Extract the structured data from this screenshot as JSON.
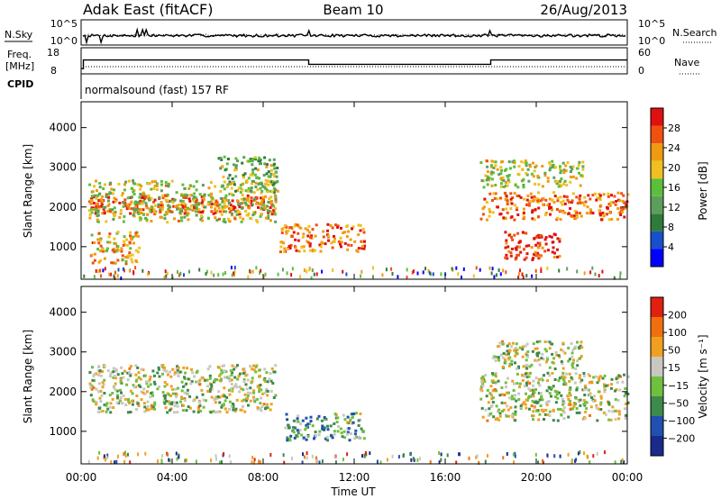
{
  "header": {
    "radar": "Adak East (fitACF)",
    "beam": "Beam 10",
    "date": "26/Aug/2013"
  },
  "noise_panel": {
    "left_label": "N.Sky",
    "right_label": "N.Search",
    "left_ticks": [
      "10^5",
      "10^0"
    ],
    "right_ticks": [
      "10^5",
      "10^0"
    ]
  },
  "freq_panel": {
    "left_label_line1": "Freq.",
    "left_label_line2": "[MHz]",
    "right_label": "Nave",
    "left_ticks": [
      "18",
      "8"
    ],
    "right_ticks": [
      "60",
      "0"
    ],
    "freq_steps": [
      {
        "from_hour": 0,
        "to_hour": 0.1,
        "value": 10
      },
      {
        "from_hour": 0.1,
        "to_hour": 10,
        "value": 14
      },
      {
        "from_hour": 10,
        "to_hour": 18,
        "value": 12
      },
      {
        "from_hour": 18,
        "to_hour": 24,
        "value": 14
      }
    ]
  },
  "cpid": {
    "label": "CPID",
    "text": "normalsound (fast) 157 RF"
  },
  "power_panel": {
    "ylabel": "Slant Range [km]",
    "yticks": [
      "4000",
      "3000",
      "2000",
      "1000"
    ],
    "colorbar_label": "Power [dB]",
    "colorbar_ticks": [
      "28",
      "24",
      "20",
      "16",
      "12",
      "8",
      "4"
    ],
    "colors": [
      "#0000ff",
      "#1a4fcc",
      "#2e7b3c",
      "#5c9f5c",
      "#5cbf3c",
      "#f0c020",
      "#f09a10",
      "#f05010",
      "#e01010"
    ]
  },
  "velocity_panel": {
    "ylabel": "Slant Range [km]",
    "yticks": [
      "4000",
      "3000",
      "2000",
      "1000"
    ],
    "colorbar_label": "Velocity [m s⁻¹]",
    "colorbar_ticks": [
      "200",
      "100",
      "50",
      "15",
      "−15",
      "−50",
      "−100",
      "−200"
    ],
    "colors": [
      "#1a2a8a",
      "#2050b0",
      "#3c8a4c",
      "#70c040",
      "#c8c8c0",
      "#f0a020",
      "#f07010",
      "#e02010"
    ]
  },
  "x_axis": {
    "ticks": [
      "00:00",
      "04:00",
      "08:00",
      "12:00",
      "16:00",
      "20:00",
      "00:00"
    ],
    "label": "Time UT"
  },
  "chart_data": {
    "type": "heatmap",
    "x_range_hours": [
      0,
      24
    ],
    "y_range_km": [
      180,
      4650
    ],
    "power_regions": [
      {
        "t0": 0.3,
        "t1": 8.5,
        "r0": 1850,
        "r1": 2350,
        "level": 8
      },
      {
        "t0": 0.3,
        "t1": 8.5,
        "r0": 1650,
        "r1": 2700,
        "level": 5
      },
      {
        "t0": 0.3,
        "t1": 2.5,
        "r0": 600,
        "r1": 1400,
        "level": 6
      },
      {
        "t0": 6.0,
        "t1": 8.6,
        "r0": 2400,
        "r1": 3300,
        "level": 4
      },
      {
        "t0": 8.7,
        "t1": 12.4,
        "r0": 900,
        "r1": 1600,
        "level": 7
      },
      {
        "t0": 17.5,
        "t1": 24,
        "r0": 1700,
        "r1": 2400,
        "level": 7
      },
      {
        "t0": 17.5,
        "t1": 22,
        "r0": 2500,
        "r1": 3200,
        "level": 5
      },
      {
        "t0": 18.5,
        "t1": 21,
        "r0": 700,
        "r1": 1400,
        "level": 8
      }
    ],
    "velocity_regions": [
      {
        "t0": 0.3,
        "t1": 8.5,
        "r0": 1500,
        "r1": 2700,
        "level": 4
      },
      {
        "t0": 8.9,
        "t1": 12.4,
        "r0": 800,
        "r1": 1500,
        "level": 3
      },
      {
        "t0": 17.5,
        "t1": 24,
        "r0": 1300,
        "r1": 2500,
        "level": 4
      },
      {
        "t0": 18,
        "t1": 22,
        "r0": 2600,
        "r1": 3300,
        "level": 4
      }
    ]
  }
}
